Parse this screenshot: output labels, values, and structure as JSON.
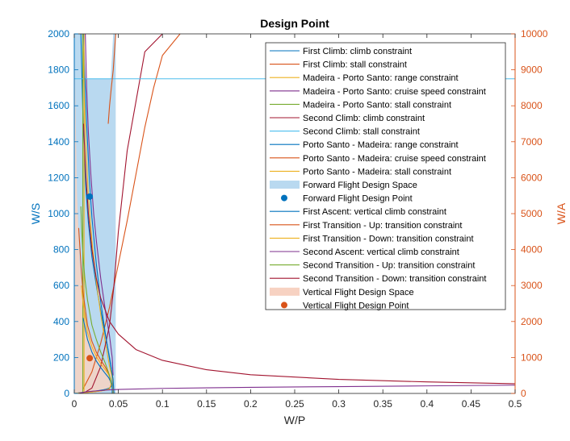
{
  "chart_data": {
    "type": "line",
    "title": "Design Point",
    "xlabel": "W/P",
    "ylabel_left": "W/S",
    "ylabel_right": "W/A",
    "xlim": [
      0,
      0.5
    ],
    "ylim_left": [
      0,
      2000
    ],
    "ylim_right": [
      0,
      10000
    ],
    "x_ticks": [
      0,
      0.05,
      0.1,
      0.15,
      0.2,
      0.25,
      0.3,
      0.35,
      0.4,
      0.45,
      0.5
    ],
    "x_tick_labels": [
      "0",
      "0.05",
      "0.1",
      "0.15",
      "0.2",
      "0.25",
      "0.3",
      "0.35",
      "0.4",
      "0.45",
      "0.5"
    ],
    "y_left_ticks": [
      0,
      200,
      400,
      600,
      800,
      1000,
      1200,
      1400,
      1600,
      1800,
      2000
    ],
    "y_right_ticks": [
      0,
      1000,
      2000,
      3000,
      4000,
      5000,
      6000,
      7000,
      8000,
      9000,
      10000
    ],
    "legend_position": "top-right",
    "colors": {
      "blue": "#0072BD",
      "orange": "#D95319",
      "yellow": "#EDB120",
      "purple": "#7E2F8E",
      "green": "#77AC30",
      "cyan": "#4DBEEE",
      "darkred": "#A2142F"
    },
    "forward_space": {
      "name": "Forward Flight Design Space",
      "color": "#B9D9F0",
      "polygon": [
        [
          0,
          2000
        ],
        [
          0.0097,
          2000
        ],
        [
          0.0111,
          1750
        ],
        [
          0.0413,
          1750
        ],
        [
          0.0442,
          2000
        ],
        [
          0.047,
          2000
        ],
        [
          0.047,
          0
        ],
        [
          0,
          0
        ]
      ]
    },
    "vertical_space": {
      "name": "Vertical Flight Design Space",
      "color": "#F7D2C2",
      "upper_x": [
        0,
        0.003,
        0.006,
        0.01,
        0.015,
        0.02,
        0.025,
        0.03,
        0.035,
        0.039,
        0.041,
        0.042,
        0.042
      ],
      "upper_y": [
        10000,
        5600,
        3700,
        2500,
        1800,
        1400,
        1150,
        950,
        800,
        700,
        600,
        450,
        200
      ],
      "lower_x": [
        0.042,
        0.04,
        0.035,
        0.03,
        0.025,
        0.02,
        0.015,
        0.01,
        0.005,
        0
      ],
      "lower_y": [
        200,
        120,
        70,
        50,
        35,
        25,
        20,
        15,
        10,
        0
      ]
    },
    "series": [
      {
        "name": "First Climb: climb constraint",
        "axis": "left",
        "color": "#0072BD",
        "x": [
          0.0075,
          0.01,
          0.013,
          0.016,
          0.02,
          0.025,
          0.03,
          0.035,
          0.04,
          0.042,
          0.043,
          0.043
        ],
        "y": [
          2000,
          1500,
          1150,
          950,
          760,
          600,
          460,
          330,
          200,
          140,
          80,
          0
        ]
      },
      {
        "name": "First Climb: stall constraint",
        "axis": "left",
        "color": "#D95319",
        "x": [
          0.01,
          0.02,
          0.03,
          0.04,
          0.05,
          0.06,
          0.07,
          0.08,
          0.09,
          0.1,
          0.12
        ],
        "y": [
          25,
          120,
          280,
          480,
          720,
          960,
          1220,
          1480,
          1700,
          1880,
          2000
        ]
      },
      {
        "name": "Madeira - Porto Santo: range constraint",
        "axis": "left",
        "color": "#EDB120",
        "x": [
          0.0095,
          0.011,
          0.013,
          0.016,
          0.02,
          0.025,
          0.03,
          0.035,
          0.04,
          0.043,
          0.044,
          0.044
        ],
        "y": [
          2000,
          1700,
          1400,
          1100,
          850,
          620,
          440,
          290,
          150,
          90,
          50,
          0
        ]
      },
      {
        "name": "Madeira - Porto Santo: cruise speed constraint",
        "axis": "left",
        "color": "#7E2F8E",
        "x": [
          0.0125,
          0.014,
          0.016,
          0.019,
          0.022,
          0.025,
          0.03,
          0.035,
          0.04,
          0.043,
          0.044
        ],
        "y": [
          2000,
          1700,
          1450,
          1200,
          1000,
          850,
          640,
          470,
          320,
          200,
          100
        ]
      },
      {
        "name": "Madeira - Porto Santo: stall constraint",
        "axis": "left",
        "color": "#77AC30",
        "x": [
          0.0097,
          0.0097
        ],
        "y": [
          0,
          2000
        ]
      },
      {
        "name": "Second Climb: climb constraint",
        "axis": "left",
        "color": "#A2142F",
        "x": [
          0.01,
          0.02,
          0.03,
          0.04,
          0.045,
          0.05,
          0.06,
          0.08,
          0.1
        ],
        "y": [
          0,
          30,
          150,
          380,
          600,
          900,
          1350,
          1900,
          2000
        ]
      },
      {
        "name": "Second Climb: stall constraint",
        "axis": "left",
        "color": "#4DBEEE",
        "x": [
          0,
          0.5
        ],
        "y": [
          1750,
          1750
        ]
      },
      {
        "name": "Porto Santo - Madeira: range constraint",
        "axis": "left",
        "color": "#0072BD",
        "x": [
          0.0105,
          0.012,
          0.014,
          0.017,
          0.02,
          0.025,
          0.03,
          0.035,
          0.04,
          0.044,
          0.045
        ],
        "y": [
          2000,
          1750,
          1500,
          1200,
          980,
          720,
          510,
          340,
          190,
          80,
          0
        ]
      },
      {
        "name": "Porto Santo - Madeira: cruise speed constraint",
        "axis": "left",
        "color": "#D95319",
        "x": [
          0.0385,
          0.04,
          0.042,
          0.0442,
          0.047
        ],
        "y": [
          1500,
          1600,
          1700,
          1800,
          2000
        ]
      },
      {
        "name": "Porto Santo - Madeira: stall constraint",
        "axis": "left",
        "color": "#EDB120",
        "x": [
          0.0111,
          0.0111
        ],
        "y": [
          0,
          2000
        ]
      },
      {
        "name": "First Ascent: vertical climb constraint",
        "axis": "right",
        "color": "#0072BD",
        "x": [
          0.01,
          0.015,
          0.02,
          0.025,
          0.03,
          0.035,
          0.039,
          0.041,
          0.042,
          0.042,
          0.04,
          0.035,
          0.03,
          0.025,
          0.02,
          0.015,
          0.01,
          0.005,
          0
        ],
        "y": [
          2100,
          1500,
          1150,
          900,
          720,
          560,
          440,
          340,
          260,
          200,
          150,
          110,
          90,
          70,
          55,
          40,
          30,
          15,
          0
        ]
      },
      {
        "name": "First Transition - Up: transition constraint",
        "axis": "right",
        "color": "#D95319",
        "x": [
          0.005,
          0.008,
          0.01,
          0.015,
          0.02,
          0.025,
          0.03,
          0.035,
          0.038,
          0.04,
          0.042,
          0.04,
          0.035,
          0.03,
          0.025,
          0.02,
          0.015,
          0.01,
          0.005,
          0
        ],
        "y": [
          4600,
          3400,
          2800,
          1900,
          1450,
          1150,
          930,
          740,
          600,
          480,
          260,
          130,
          90,
          70,
          55,
          40,
          30,
          20,
          10,
          0
        ]
      },
      {
        "name": "First Transition - Down: transition constraint",
        "axis": "right",
        "color": "#EDB120",
        "x": [
          0.008,
          0.01,
          0.015,
          0.02,
          0.025,
          0.03,
          0.035,
          0.038,
          0.041,
          0.042,
          0.04,
          0.035,
          0.03,
          0.025,
          0.02,
          0.015,
          0.01,
          0.005,
          0
        ],
        "y": [
          3000,
          2500,
          1700,
          1300,
          1030,
          830,
          660,
          560,
          420,
          250,
          130,
          90,
          70,
          55,
          40,
          30,
          20,
          10,
          0
        ]
      },
      {
        "name": "Second Ascent: vertical climb constraint",
        "axis": "right",
        "color": "#7E2F8E",
        "x": [
          0.005,
          0.01,
          0.015,
          0.02,
          0.03,
          0.04,
          0.05,
          0.1,
          0.2,
          0.3,
          0.4,
          0.5
        ],
        "y": [
          0,
          30,
          50,
          60,
          80,
          100,
          110,
          140,
          170,
          190,
          210,
          230
        ]
      },
      {
        "name": "Second Transition - Up: transition constraint",
        "axis": "right",
        "color": "#77AC30",
        "x": [
          0.0075,
          0.0085,
          0.01,
          0.012,
          0.015,
          0.02,
          0.025,
          0.03,
          0.035,
          0.04,
          0.042
        ],
        "y": [
          5200,
          4500,
          3800,
          3200,
          2600,
          1900,
          1500,
          1150,
          850,
          500,
          250
        ]
      },
      {
        "name": "Second Transition - Down: transition constraint",
        "axis": "right",
        "color": "#A2142F",
        "x": [
          0.0105,
          0.013,
          0.016,
          0.02,
          0.025,
          0.03,
          0.04,
          0.05,
          0.07,
          0.1,
          0.15,
          0.2,
          0.3,
          0.4,
          0.5
        ],
        "y": [
          7500,
          6100,
          5000,
          4000,
          3200,
          2650,
          2000,
          1650,
          1220,
          920,
          660,
          520,
          390,
          320,
          270
        ]
      }
    ],
    "points": [
      {
        "name": "Forward Flight Design Point",
        "axis": "left",
        "color": "#0072BD",
        "x": 0.0175,
        "y": 1095
      },
      {
        "name": "Vertical Flight Design Point",
        "axis": "right",
        "color": "#D95319",
        "x": 0.0175,
        "y": 980
      }
    ],
    "legend": [
      {
        "label": "First Climb: climb constraint",
        "kind": "line",
        "color": "#0072BD"
      },
      {
        "label": "First Climb: stall constraint",
        "kind": "line",
        "color": "#D95319"
      },
      {
        "label": "Madeira - Porto Santo: range constraint",
        "kind": "line",
        "color": "#EDB120"
      },
      {
        "label": "Madeira - Porto Santo: cruise speed constraint",
        "kind": "line",
        "color": "#7E2F8E"
      },
      {
        "label": "Madeira - Porto Santo: stall constraint",
        "kind": "line",
        "color": "#77AC30"
      },
      {
        "label": "Second Climb: climb constraint",
        "kind": "line",
        "color": "#A2142F"
      },
      {
        "label": "Second Climb: stall constraint",
        "kind": "line",
        "color": "#4DBEEE"
      },
      {
        "label": "Porto Santo - Madeira: range constraint",
        "kind": "line",
        "color": "#0072BD"
      },
      {
        "label": "Porto Santo - Madeira: cruise speed constraint",
        "kind": "line",
        "color": "#D95319"
      },
      {
        "label": "Porto Santo - Madeira: stall constraint",
        "kind": "line",
        "color": "#EDB120"
      },
      {
        "label": "Forward Flight Design Space",
        "kind": "patch",
        "color": "#B9D9F0"
      },
      {
        "label": "Forward Flight Design Point",
        "kind": "marker",
        "color": "#0072BD"
      },
      {
        "label": "First Ascent: vertical climb constraint",
        "kind": "line",
        "color": "#0072BD"
      },
      {
        "label": "First Transition - Up: transition constraint",
        "kind": "line",
        "color": "#D95319"
      },
      {
        "label": "First Transition - Down: transition constraint",
        "kind": "line",
        "color": "#EDB120"
      },
      {
        "label": "Second Ascent: vertical climb constraint",
        "kind": "line",
        "color": "#7E2F8E"
      },
      {
        "label": "Second Transition - Up: transition constraint",
        "kind": "line",
        "color": "#77AC30"
      },
      {
        "label": "Second Transition - Down: transition constraint",
        "kind": "line",
        "color": "#A2142F"
      },
      {
        "label": "Vertical Flight Design Space",
        "kind": "patch",
        "color": "#F7D2C2"
      },
      {
        "label": "Vertical Flight Design Point",
        "kind": "marker",
        "color": "#D95319"
      }
    ]
  }
}
